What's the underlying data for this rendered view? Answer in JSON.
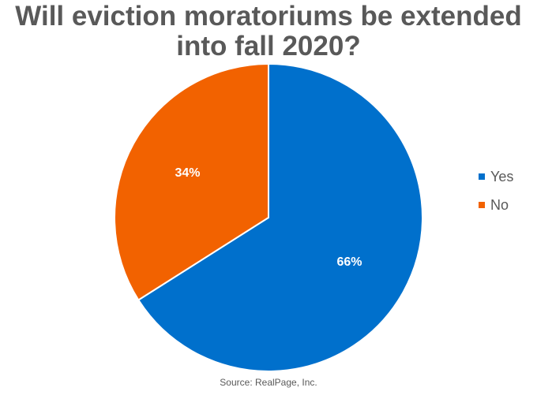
{
  "chart_data": {
    "type": "pie",
    "title_lines": [
      "Will eviction moratoriums be extended",
      "into fall 2020?"
    ],
    "slices": [
      {
        "label": "Yes",
        "value": 66,
        "display": "66%",
        "color": "#0070CC"
      },
      {
        "label": "No",
        "value": 34,
        "display": "34%",
        "color": "#F26200"
      }
    ],
    "legend_placement": "right"
  },
  "source": "Source: RealPage, Inc."
}
